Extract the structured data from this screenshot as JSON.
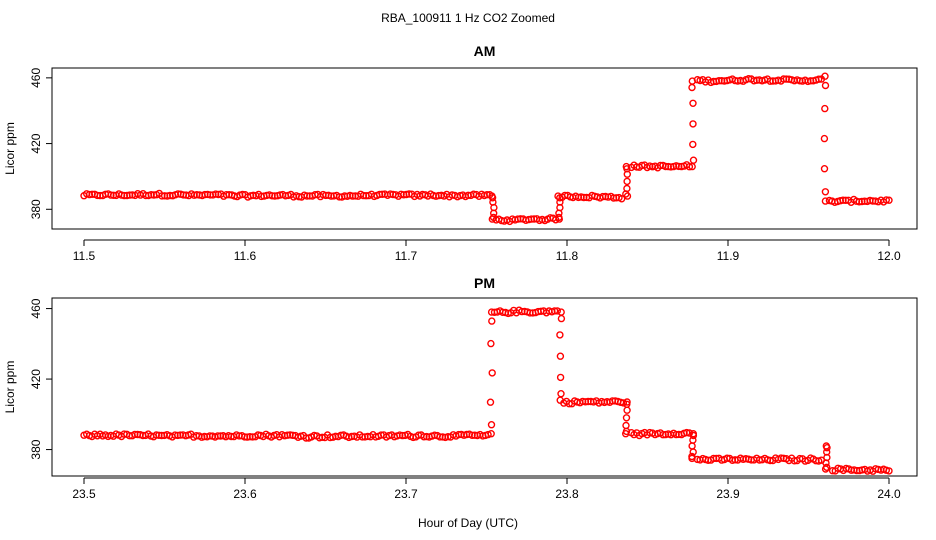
{
  "title": "RBA_100911  1 Hz CO2 Zoomed",
  "xlabel": "Hour of Day (UTC)",
  "point_color": "#ff0000",
  "chart_data": [
    {
      "type": "scatter",
      "title": "AM",
      "ylabel": "Licor ppm",
      "xlim": [
        11.5,
        12.0
      ],
      "ylim": [
        368,
        466
      ],
      "x_ticks": [
        "11.5",
        "11.6",
        "11.7",
        "11.8",
        "11.9",
        "12.0"
      ],
      "y_ticks": [
        "380",
        "420",
        "460"
      ],
      "segments": [
        {
          "x": [
            11.5,
            11.752
          ],
          "y": 388.5
        },
        {
          "x": [
            11.756,
            11.793
          ],
          "y": 373.5
        },
        {
          "x": [
            11.797,
            11.834
          ],
          "y": 388
        },
        {
          "x": [
            11.84,
            11.876
          ],
          "y": 406
        },
        {
          "x": [
            11.881,
            11.958
          ],
          "y": 458.5
        },
        {
          "x": [
            11.963,
            12.0
          ],
          "y": 385
        }
      ],
      "transitions": [
        {
          "x": 11.754,
          "y": [
            388,
            374
          ]
        },
        {
          "x": 11.795,
          "y": [
            374,
            388
          ]
        },
        {
          "x": 11.837,
          "y": [
            388,
            406
          ]
        },
        {
          "x": 11.878,
          "y": [
            406,
            458
          ]
        },
        {
          "x": 11.96,
          "y": [
            461,
            385
          ]
        }
      ]
    },
    {
      "type": "scatter",
      "title": "PM",
      "ylabel": "Licor ppm",
      "xlim": [
        23.5,
        24.0
      ],
      "ylim": [
        365,
        466
      ],
      "x_ticks": [
        "23.5",
        "23.6",
        "23.7",
        "23.8",
        "23.9",
        "24.0"
      ],
      "y_ticks": [
        "380",
        "420",
        "460"
      ],
      "segments": [
        {
          "x": [
            23.5,
            23.751
          ],
          "y": 388
        },
        {
          "x": [
            23.755,
            23.794
          ],
          "y": 458
        },
        {
          "x": [
            23.798,
            23.835
          ],
          "y": 407
        },
        {
          "x": [
            23.84,
            23.876
          ],
          "y": 389
        },
        {
          "x": [
            23.881,
            23.958
          ],
          "y": 374.5
        },
        {
          "x": [
            23.965,
            24.0
          ],
          "y": 368.5
        }
      ],
      "transitions": [
        {
          "x": 23.753,
          "y": [
            389,
            458
          ]
        },
        {
          "x": 23.796,
          "y": [
            458,
            408
          ]
        },
        {
          "x": 23.837,
          "y": [
            407,
            389
          ]
        },
        {
          "x": 23.878,
          "y": [
            389,
            375
          ]
        },
        {
          "x": 23.961,
          "y": [
            382,
            369
          ]
        }
      ]
    }
  ]
}
